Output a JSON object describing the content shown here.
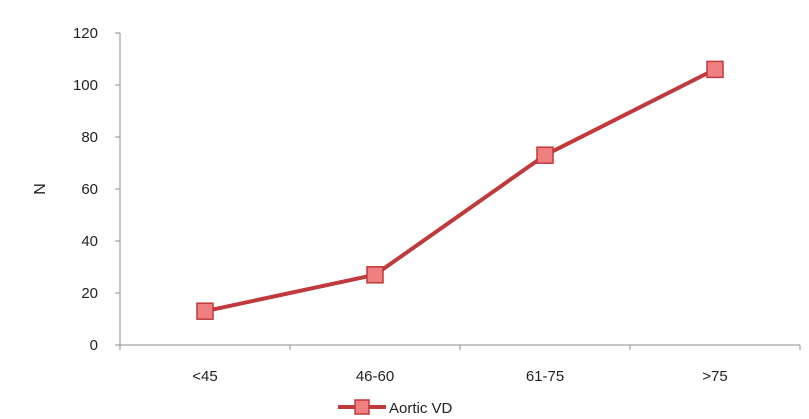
{
  "chart_data": {
    "type": "line",
    "title": "",
    "xlabel": "",
    "ylabel": "N",
    "categories": [
      "<45",
      "46-60",
      "61-75",
      ">75"
    ],
    "ylim": [
      0,
      120
    ],
    "yticks": [
      0,
      20,
      40,
      60,
      80,
      100,
      120
    ],
    "grid": false,
    "legend_position": "bottom",
    "series": [
      {
        "name": "Aortic VD",
        "values": [
          13,
          27,
          73,
          106
        ],
        "color": "#c0393b",
        "marker": "square",
        "marker_fill": "#f08080"
      }
    ]
  }
}
